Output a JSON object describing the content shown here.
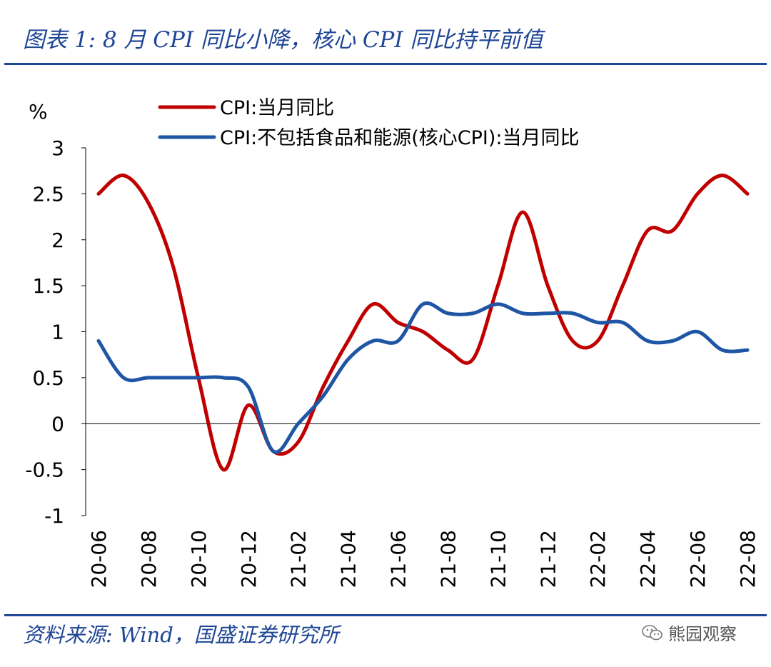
{
  "figure": {
    "title": "图表 1:  8 月 CPI 同比小降，核心 CPI 同比持平前值",
    "source": "资料来源:  Wind，国盛证券研究所",
    "watermark": "熊园观察"
  },
  "colors": {
    "brand_blue": "#1f4696",
    "cpi": "#c00000",
    "core_cpi": "#1f55a5"
  },
  "chart_data": {
    "type": "line",
    "title": "图表 1:  8 月 CPI 同比小降，核心 CPI 同比持平前值",
    "ylabel": "%",
    "xlabel": "",
    "ylim": [
      -1,
      3
    ],
    "yticks": [
      -1,
      -0.5,
      0,
      0.5,
      1,
      1.5,
      2,
      2.5,
      3
    ],
    "ytick_labels": [
      "-1",
      "-0.5",
      "0",
      "0.5",
      "1",
      "1.5",
      "2",
      "2.5",
      "3"
    ],
    "legend_position": "top",
    "x": [
      "20-06",
      "20-07",
      "20-08",
      "20-09",
      "20-10",
      "20-11",
      "20-12",
      "21-01",
      "21-02",
      "21-03",
      "21-04",
      "21-05",
      "21-06",
      "21-07",
      "21-08",
      "21-09",
      "21-10",
      "21-11",
      "21-12",
      "22-01",
      "22-02",
      "22-03",
      "22-04",
      "22-05",
      "22-06",
      "22-07",
      "22-08"
    ],
    "xtick_labels": [
      "20-06",
      "20-08",
      "20-10",
      "20-12",
      "21-02",
      "21-04",
      "21-06",
      "21-08",
      "21-10",
      "21-12",
      "22-02",
      "22-04",
      "22-06",
      "22-08"
    ],
    "series": [
      {
        "name": "CPI:当月同比",
        "color": "#c00000",
        "values": [
          2.5,
          2.7,
          2.4,
          1.7,
          0.5,
          -0.5,
          0.2,
          -0.3,
          -0.2,
          0.4,
          0.9,
          1.3,
          1.1,
          1.0,
          0.8,
          0.7,
          1.5,
          2.3,
          1.5,
          0.9,
          0.9,
          1.5,
          2.1,
          2.1,
          2.5,
          2.7,
          2.5
        ]
      },
      {
        "name": "CPI:不包括食品和能源(核心CPI):当月同比",
        "color": "#1f55a5",
        "values": [
          0.9,
          0.5,
          0.5,
          0.5,
          0.5,
          0.5,
          0.4,
          -0.3,
          0.0,
          0.3,
          0.7,
          0.9,
          0.9,
          1.3,
          1.2,
          1.2,
          1.3,
          1.2,
          1.2,
          1.2,
          1.1,
          1.1,
          0.9,
          0.9,
          1.0,
          0.8,
          0.8
        ]
      }
    ]
  }
}
